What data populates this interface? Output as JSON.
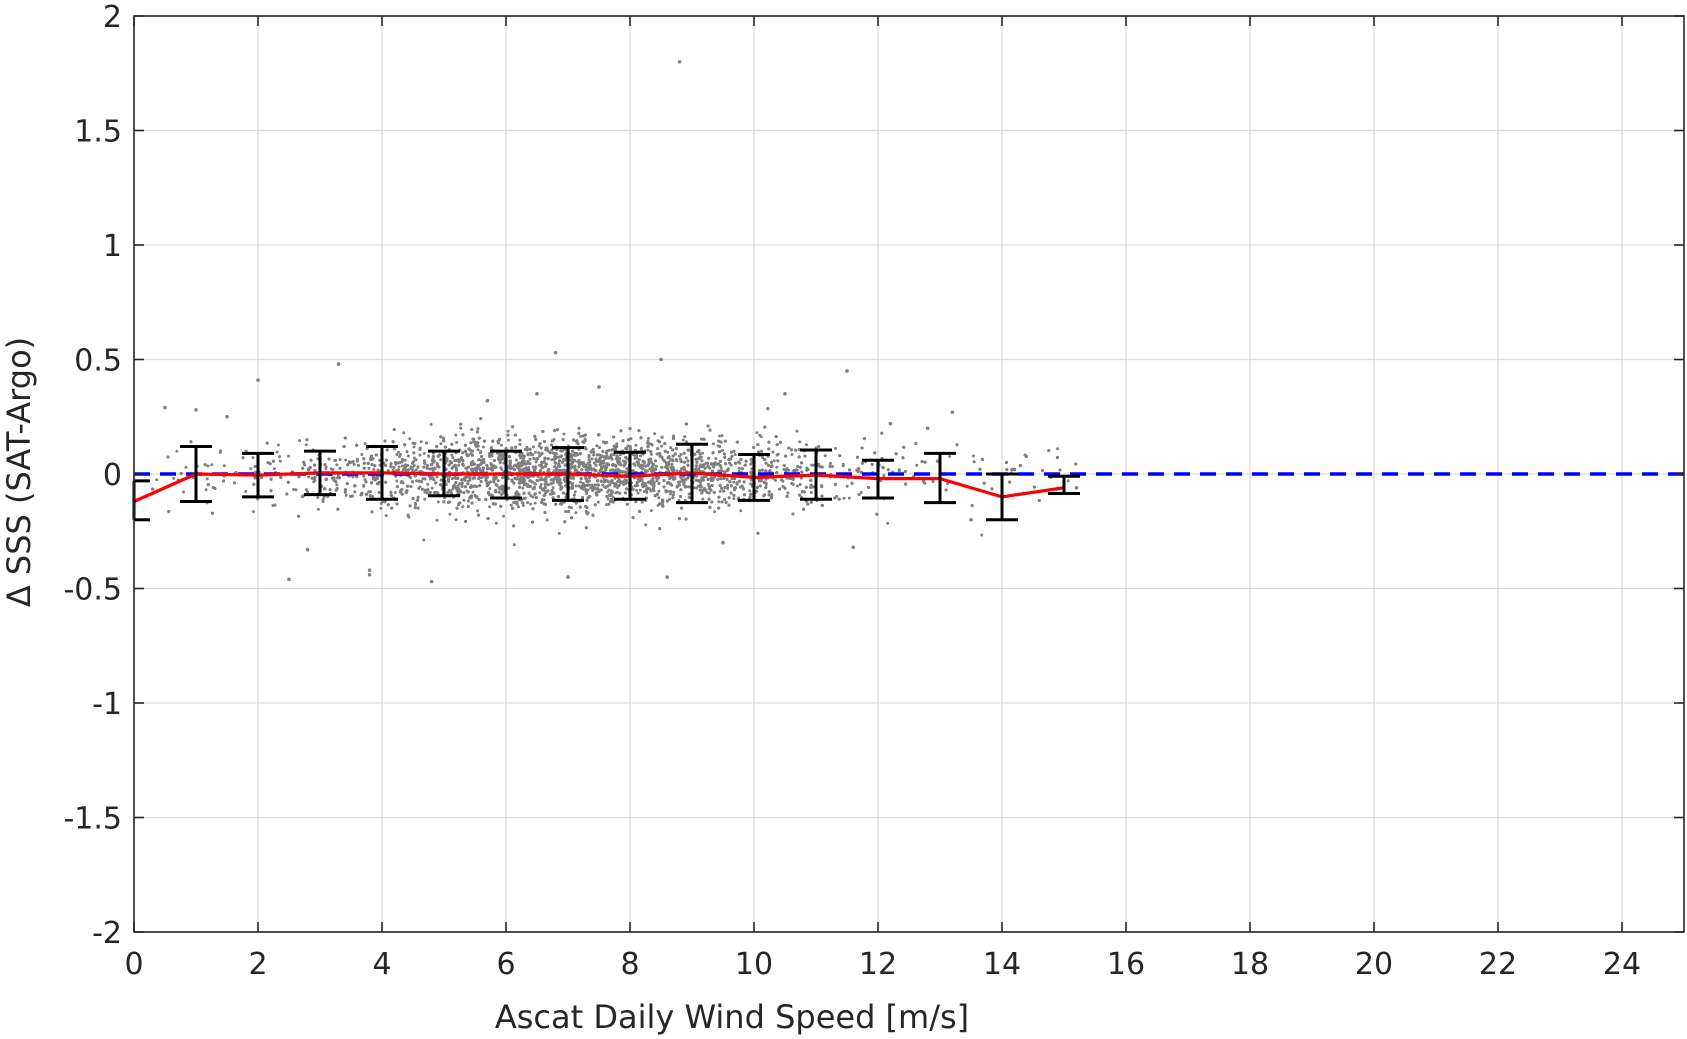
{
  "chart_data": {
    "type": "scatter",
    "xlabel": "Ascat Daily Wind Speed [m/s]",
    "ylabel": "Δ SSS (SAT-Argo)",
    "xlim": [
      0,
      25
    ],
    "ylim": [
      -2,
      2
    ],
    "x_ticks": [
      0,
      2,
      4,
      6,
      8,
      10,
      12,
      14,
      16,
      18,
      20,
      22,
      24
    ],
    "x_tick_labels": [
      "0",
      "2",
      "4",
      "6",
      "8",
      "10",
      "12",
      "14",
      "16",
      "18",
      "20",
      "22",
      "24"
    ],
    "y_ticks": [
      -2,
      -1.5,
      -1,
      -0.5,
      0,
      0.5,
      1,
      1.5,
      2
    ],
    "y_tick_labels": [
      "-2",
      "-1.5",
      "-1",
      "-0.5",
      "0",
      "0.5",
      "1",
      "1.5",
      "2"
    ],
    "grid": true,
    "reference_line": {
      "y": 0,
      "style": "dashed",
      "color": "#0000ff"
    },
    "scatter": {
      "color": "#808080",
      "points": [
        [
          8.8,
          1.8
        ],
        [
          3.3,
          0.48
        ],
        [
          2.0,
          0.41
        ],
        [
          6.8,
          0.53
        ],
        [
          8.5,
          0.5
        ],
        [
          11.5,
          0.45
        ],
        [
          2.5,
          -0.46
        ],
        [
          4.8,
          -0.47
        ],
        [
          3.8,
          -0.44
        ],
        [
          7.0,
          -0.45
        ],
        [
          8.6,
          -0.45
        ],
        [
          3.8,
          -0.42
        ],
        [
          13.2,
          0.27
        ],
        [
          15.2,
          -0.06
        ],
        [
          0.5,
          0.29
        ],
        [
          1.0,
          0.28
        ],
        [
          1.5,
          0.25
        ],
        [
          2.8,
          -0.33
        ],
        [
          9.5,
          -0.3
        ],
        [
          11.6,
          -0.32
        ],
        [
          5.7,
          0.32
        ],
        [
          6.5,
          0.35
        ],
        [
          7.5,
          0.38
        ],
        [
          10.5,
          0.35
        ],
        [
          12.2,
          0.22
        ],
        [
          12.8,
          0.2
        ],
        [
          13.5,
          -0.2
        ],
        [
          14.2,
          0.02
        ]
      ]
    },
    "binned_mean": {
      "color": "#ff0000",
      "x": [
        0,
        1,
        2,
        3,
        4,
        5,
        6,
        7,
        8,
        9,
        10,
        11,
        12,
        13,
        14,
        15
      ],
      "y": [
        -0.12,
        0.0,
        -0.005,
        0.005,
        0.005,
        0.0,
        0.0,
        0.0,
        -0.01,
        0.005,
        -0.015,
        -0.005,
        -0.02,
        -0.02,
        -0.1,
        -0.06
      ]
    },
    "error_bars": {
      "color": "#000000",
      "x": [
        0,
        1,
        2,
        3,
        4,
        5,
        6,
        7,
        8,
        9,
        10,
        11,
        12,
        13,
        14,
        15
      ],
      "upper": [
        -0.03,
        0.12,
        0.09,
        0.1,
        0.12,
        0.1,
        0.1,
        0.115,
        0.095,
        0.13,
        0.085,
        0.105,
        0.06,
        0.09,
        0.0,
        -0.01
      ],
      "lower": [
        -0.2,
        -0.12,
        -0.1,
        -0.09,
        -0.11,
        -0.095,
        -0.105,
        -0.115,
        -0.11,
        -0.125,
        -0.115,
        -0.11,
        -0.105,
        -0.125,
        -0.2,
        -0.085
      ]
    }
  }
}
